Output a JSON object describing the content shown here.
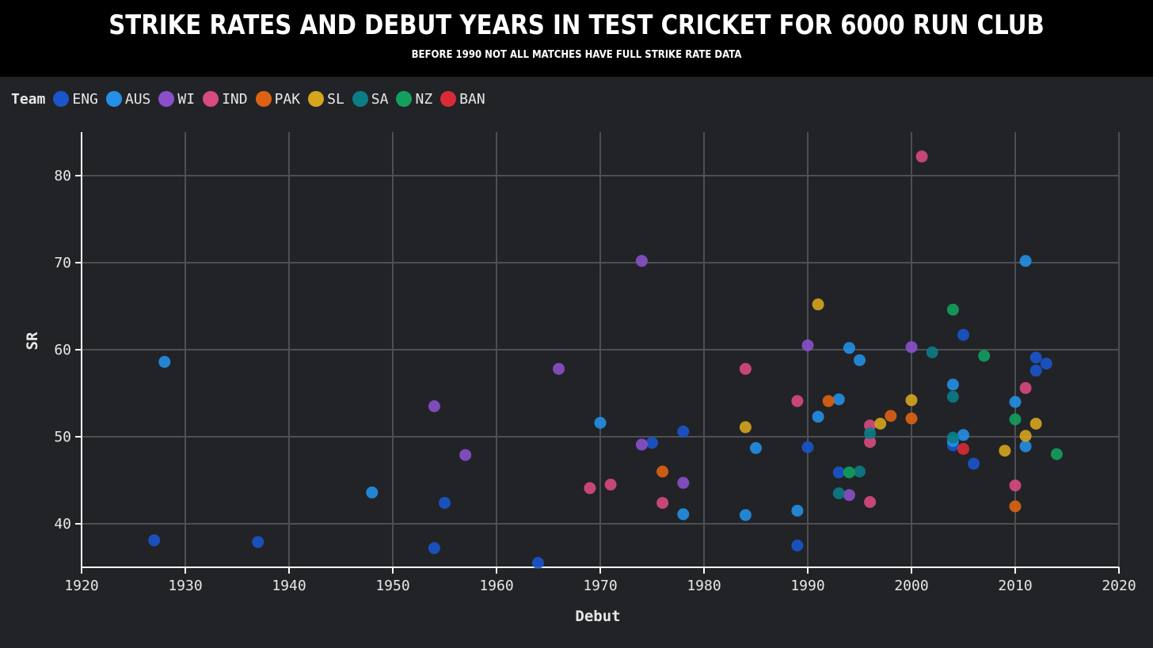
{
  "header": {
    "title": "STRIKE RATES AND DEBUT YEARS IN TEST CRICKET FOR 6000 RUN CLUB",
    "subtitle": "BEFORE 1990 NOT ALL MATCHES HAVE FULL STRIKE RATE DATA"
  },
  "legend": {
    "title": "Team",
    "items": [
      {
        "label": "ENG",
        "color": "#1a55cc"
      },
      {
        "label": "AUS",
        "color": "#2490e6"
      },
      {
        "label": "WI",
        "color": "#8a50cc"
      },
      {
        "label": "IND",
        "color": "#d84a80"
      },
      {
        "label": "PAK",
        "color": "#dd6314"
      },
      {
        "label": "SL",
        "color": "#d6a51e"
      },
      {
        "label": "SA",
        "color": "#0c7c86"
      },
      {
        "label": "NZ",
        "color": "#13a05e"
      },
      {
        "label": "BAN",
        "color": "#d92b36"
      }
    ]
  },
  "chart_data": {
    "type": "scatter",
    "title": "STRIKE RATES AND DEBUT YEARS IN TEST CRICKET FOR 6000 RUN CLUB",
    "subtitle": "BEFORE 1990 NOT ALL MATCHES HAVE FULL STRIKE RATE DATA",
    "xlabel": "Debut",
    "ylabel": "SR",
    "xlim": [
      1920,
      2020
    ],
    "ylim": [
      35,
      85
    ],
    "xticks": [
      1920,
      1930,
      1940,
      1950,
      1960,
      1970,
      1980,
      1990,
      2000,
      2010,
      2020
    ],
    "yticks": [
      40,
      50,
      60,
      70,
      80
    ],
    "grid": true,
    "legend_position": "top-left",
    "series": [
      {
        "name": "ENG",
        "color": "#1a55cc",
        "points": [
          [
            1927,
            38.1
          ],
          [
            1937,
            37.9
          ],
          [
            1954,
            37.2
          ],
          [
            1955,
            42.4
          ],
          [
            1964,
            35.5
          ],
          [
            1975,
            49.3
          ],
          [
            1978,
            50.6
          ],
          [
            1989,
            37.5
          ],
          [
            1990,
            48.8
          ],
          [
            1993,
            45.9
          ],
          [
            2004,
            49.0
          ],
          [
            2005,
            61.7
          ],
          [
            2006,
            46.9
          ],
          [
            2012,
            59.1
          ],
          [
            2012,
            57.6
          ],
          [
            2013,
            58.4
          ]
        ]
      },
      {
        "name": "AUS",
        "color": "#2490e6",
        "points": [
          [
            1928,
            58.6
          ],
          [
            1948,
            43.6
          ],
          [
            1970,
            51.6
          ],
          [
            1978,
            41.1
          ],
          [
            1984,
            41.0
          ],
          [
            1985,
            48.7
          ],
          [
            1989,
            41.5
          ],
          [
            1991,
            52.3
          ],
          [
            1993,
            54.3
          ],
          [
            1994,
            60.2
          ],
          [
            1995,
            58.8
          ],
          [
            2004,
            56.0
          ],
          [
            2004,
            49.5
          ],
          [
            2005,
            50.2
          ],
          [
            2010,
            54.0
          ],
          [
            2011,
            70.2
          ],
          [
            2011,
            48.9
          ]
        ]
      },
      {
        "name": "WI",
        "color": "#8a50cc",
        "points": [
          [
            1954,
            53.5
          ],
          [
            1957,
            47.9
          ],
          [
            1966,
            57.8
          ],
          [
            1974,
            70.2
          ],
          [
            1974,
            49.1
          ],
          [
            1978,
            44.7
          ],
          [
            1990,
            60.5
          ],
          [
            1994,
            43.3
          ],
          [
            2000,
            60.3
          ]
        ]
      },
      {
        "name": "IND",
        "color": "#d84a80",
        "points": [
          [
            1969,
            44.1
          ],
          [
            1971,
            44.5
          ],
          [
            1976,
            42.4
          ],
          [
            1984,
            57.8
          ],
          [
            1989,
            54.1
          ],
          [
            1996,
            51.3
          ],
          [
            1996,
            49.4
          ],
          [
            1996,
            42.5
          ],
          [
            2001,
            82.2
          ],
          [
            2010,
            44.4
          ],
          [
            2011,
            55.6
          ]
        ]
      },
      {
        "name": "PAK",
        "color": "#dd6314",
        "points": [
          [
            1976,
            46.0
          ],
          [
            1992,
            54.1
          ],
          [
            1998,
            52.4
          ],
          [
            2000,
            52.1
          ],
          [
            2010,
            42.0
          ]
        ]
      },
      {
        "name": "SL",
        "color": "#d6a51e",
        "points": [
          [
            1984,
            51.1
          ],
          [
            1991,
            65.2
          ],
          [
            1997,
            51.5
          ],
          [
            2000,
            54.2
          ],
          [
            2009,
            48.4
          ],
          [
            2011,
            50.1
          ],
          [
            2012,
            51.5
          ]
        ]
      },
      {
        "name": "SA",
        "color": "#0c7c86",
        "points": [
          [
            1993,
            43.5
          ],
          [
            1995,
            46.0
          ],
          [
            1996,
            50.4
          ],
          [
            2002,
            59.7
          ],
          [
            2004,
            54.6
          ],
          [
            2004,
            49.9
          ]
        ]
      },
      {
        "name": "NZ",
        "color": "#13a05e",
        "points": [
          [
            1994,
            45.9
          ],
          [
            2004,
            64.6
          ],
          [
            2007,
            59.3
          ],
          [
            2010,
            52.0
          ],
          [
            2014,
            48.0
          ]
        ]
      },
      {
        "name": "BAN",
        "color": "#d92b36",
        "points": [
          [
            2005,
            48.6
          ]
        ]
      }
    ]
  }
}
